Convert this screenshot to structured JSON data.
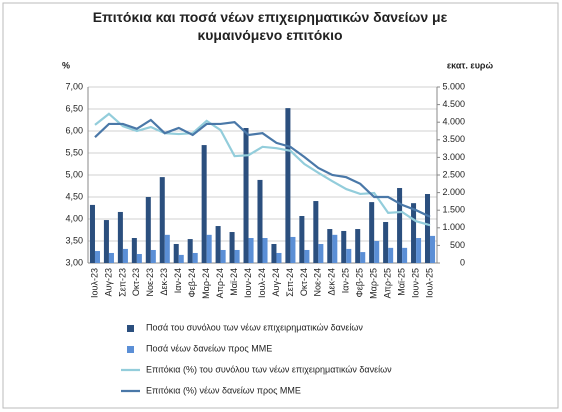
{
  "chart_data": {
    "type": "bar-line",
    "title": "Επιτόκια και ποσά νέων επιχειρηματικών δανείων με κυμαινόμενο επιτόκιο",
    "y_label": "%",
    "y2_label": "εκατ. ευρώ",
    "categories": [
      "Ιουλ-23",
      "Αυγ-23",
      "Σεπ-23",
      "Οκτ-23",
      "Νοε-23",
      "Δεκ-23",
      "Ιαν-24",
      "Φεβ-24",
      "Μαρ-24",
      "Απρ-24",
      "Μαϊ-24",
      "Ιουν-24",
      "Ιουλ-24",
      "Αυγ-24",
      "Σεπ-24",
      "Οκτ-24",
      "Νοε-24",
      "Δεκ-24",
      "Ιαν-25",
      "Φεβ-25",
      "Μαρ-25",
      "Απρ-25",
      "Μαϊ-25",
      "Ιουν-25",
      "Ιουλ-25"
    ],
    "ylim": [
      3,
      7
    ],
    "yticks": [
      {
        "value": 3,
        "label": "3,00"
      },
      {
        "value": 3.5,
        "label": "3,50"
      },
      {
        "value": 4,
        "label": "4,00"
      },
      {
        "value": 4.5,
        "label": "4,50"
      },
      {
        "value": 5,
        "label": "5,00"
      },
      {
        "value": 5.5,
        "label": "5,50"
      },
      {
        "value": 6,
        "label": "6,00"
      },
      {
        "value": 6.5,
        "label": "6,50"
      },
      {
        "value": 7,
        "label": "7,00"
      }
    ],
    "y2lim": [
      0,
      5000
    ],
    "y2ticks": [
      0,
      {
        "value": 500,
        "label": "500"
      },
      {
        "value": 1000,
        "label": "1.000"
      },
      {
        "value": 1500,
        "label": "1.500"
      },
      {
        "value": 2000,
        "label": "2.000"
      },
      {
        "value": 2500,
        "label": "2.500"
      },
      {
        "value": 3000,
        "label": "3.000"
      },
      {
        "value": 3500,
        "label": "3.500"
      },
      {
        "value": 4000,
        "label": "4.000"
      },
      {
        "value": 4500,
        "label": "4.500"
      },
      {
        "value": 5000,
        "label": "5.000"
      }
    ],
    "series": [
      {
        "name": "Ποσά του συνόλου των νέων επιχειρηματικών δανείων",
        "kind": "bar",
        "axis": "y2",
        "color": "#2b4f7e",
        "values": [
          1650,
          1220,
          1450,
          710,
          1875,
          2440,
          540,
          680,
          3350,
          1050,
          880,
          3835,
          2360,
          540,
          4400,
          1335,
          1760,
          965,
          910,
          965,
          1730,
          1165,
          2130,
          1700,
          1960
        ]
      },
      {
        "name": "Ποσά νέων δανείων προς ΜΜΕ",
        "kind": "bar",
        "axis": "y2",
        "color": "#5b8fd6",
        "values": [
          340,
          285,
          400,
          255,
          370,
          800,
          230,
          285,
          800,
          370,
          370,
          710,
          710,
          285,
          740,
          370,
          540,
          800,
          400,
          310,
          625,
          430,
          430,
          710,
          770
        ]
      },
      {
        "name": "Επιτόκια (%) του συνόλου των νέων επιχειρηματικών δανείων",
        "kind": "line",
        "axis": "y",
        "color": "#93cddb",
        "values": [
          6.14,
          6.39,
          6.11,
          6.0,
          6.09,
          5.95,
          5.93,
          5.95,
          6.23,
          6.02,
          5.43,
          5.45,
          5.64,
          5.61,
          5.55,
          5.25,
          5.05,
          4.86,
          4.68,
          4.57,
          4.59,
          4.14,
          4.16,
          3.95,
          3.86
        ]
      },
      {
        "name": "Επιτόκια (%) νέων δανείων προς ΜΜΕ",
        "kind": "line",
        "axis": "y",
        "color": "#4a78a8",
        "values": [
          5.86,
          6.16,
          6.16,
          6.05,
          6.25,
          5.95,
          6.07,
          5.91,
          6.16,
          6.16,
          6.2,
          5.91,
          5.95,
          5.73,
          5.64,
          5.41,
          5.16,
          5.0,
          4.95,
          4.8,
          4.5,
          4.5,
          4.32,
          4.2,
          4.05
        ]
      }
    ]
  }
}
